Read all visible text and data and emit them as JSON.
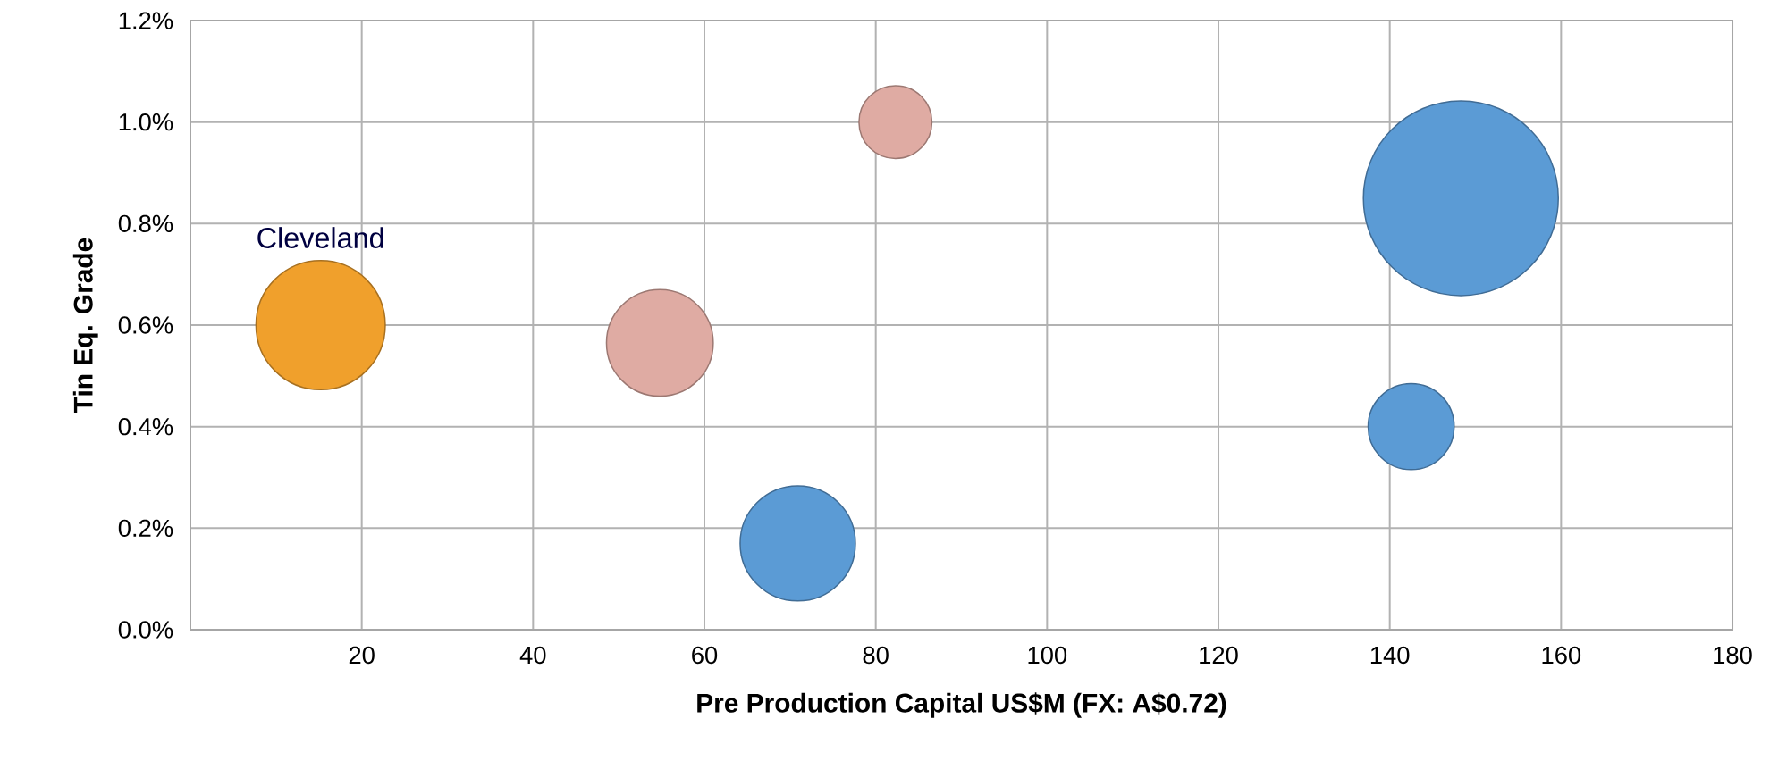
{
  "chart_data": {
    "type": "bubble",
    "xlabel": "Pre Production Capital US$M (FX: A$0.72)",
    "ylabel": "Tin Eq. Grade",
    "x": [
      15.2,
      54.8,
      82.3,
      70.9,
      142.5,
      148.3
    ],
    "values": [
      0.6,
      0.565,
      1.0,
      0.17,
      0.4,
      0.85
    ],
    "sizes": [
      0.44,
      0.3,
      0.14,
      0.35,
      0.195,
      1
    ],
    "colors": [
      "#f0a02c",
      "#dfaba3",
      "#dfaba3",
      "#5b9bd5",
      "#5b9bd5",
      "#5b9bd5"
    ],
    "xlim": [
      0,
      180
    ],
    "xticks": [
      20,
      40,
      60,
      80,
      100,
      120,
      140,
      160,
      180
    ],
    "ylim": [
      0,
      1.2
    ],
    "yticks": [
      {
        "value": 0,
        "label": "0.0%"
      },
      {
        "value": 0.2,
        "label": "0.2%"
      },
      {
        "value": 0.4,
        "label": "0.4%"
      },
      {
        "value": 0.6,
        "label": "0.6%"
      },
      {
        "value": 0.8,
        "label": "0.8%"
      },
      {
        "value": 1.0,
        "label": "1.0%"
      },
      {
        "value": 1.2,
        "label": "1.2%"
      }
    ],
    "grid": true,
    "annotations": [
      {
        "text": "Cleveland",
        "x": 15.2,
        "y": 0.6
      }
    ]
  }
}
